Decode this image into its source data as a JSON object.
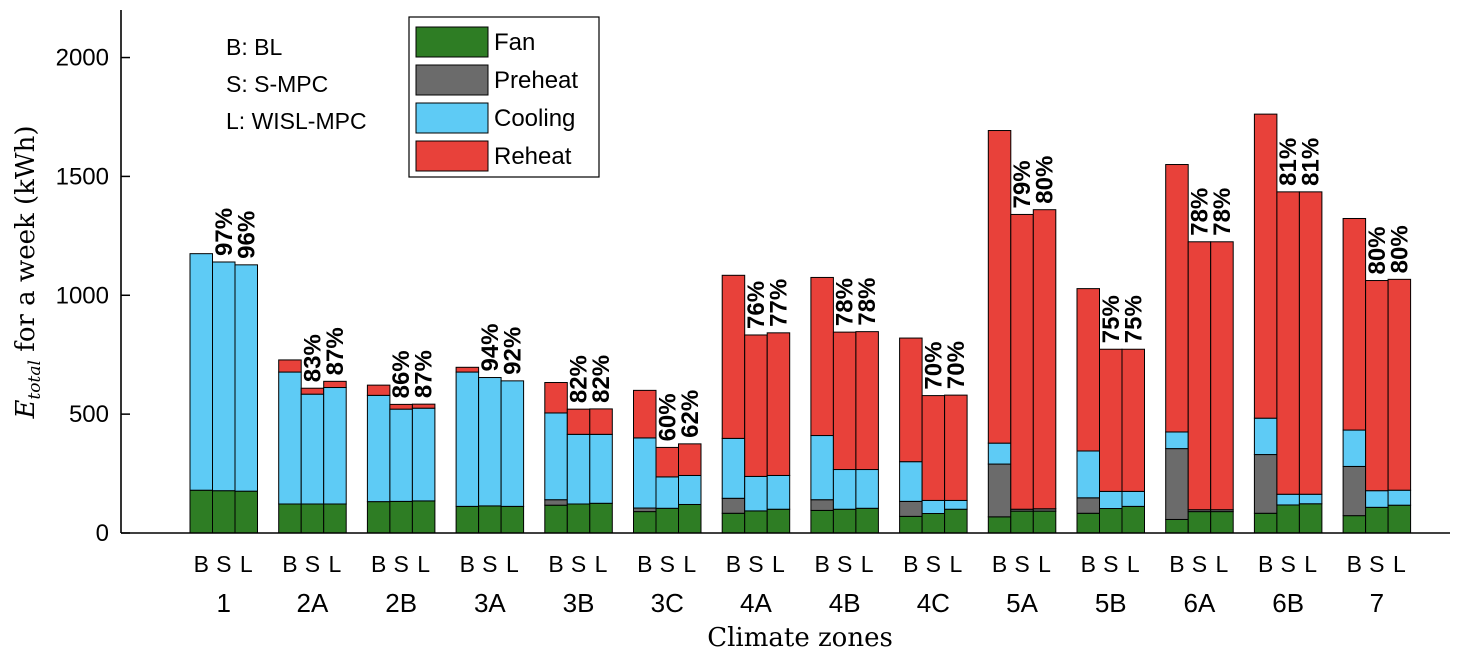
{
  "chart_data": {
    "type": "bar",
    "stacked": true,
    "xlabel": "Climate zones",
    "ylabel": {
      "main": "E",
      "sub": "total",
      "rest": " for a week (kWh)"
    },
    "ylim": [
      0,
      2200
    ],
    "yticks": [
      0,
      500,
      1000,
      1500,
      2000
    ],
    "grid": false,
    "legend_position": "top-left",
    "bar_letters": [
      "B",
      "S",
      "L"
    ],
    "abbreviations": [
      "B: BL",
      "S: S-MPC",
      "L: WISL-MPC"
    ],
    "series": [
      {
        "name": "Fan",
        "color": "#2e7d24"
      },
      {
        "name": "Preheat",
        "color": "#6b6b6b"
      },
      {
        "name": "Cooling",
        "color": "#5ecbf5"
      },
      {
        "name": "Reheat",
        "color": "#e8413a"
      }
    ],
    "groups": [
      {
        "label": "1",
        "bars": [
          {
            "Fan": 180,
            "Preheat": 0,
            "Cooling": 995,
            "Reheat": 0
          },
          {
            "Fan": 178,
            "Preheat": 0,
            "Cooling": 962,
            "Reheat": 0
          },
          {
            "Fan": 176,
            "Preheat": 0,
            "Cooling": 952,
            "Reheat": 0
          }
        ],
        "pcts": [
          "97%",
          "96%"
        ]
      },
      {
        "label": "2A",
        "bars": [
          {
            "Fan": 122,
            "Preheat": 0,
            "Cooling": 555,
            "Reheat": 51
          },
          {
            "Fan": 122,
            "Preheat": 0,
            "Cooling": 462,
            "Reheat": 25
          },
          {
            "Fan": 122,
            "Preheat": 0,
            "Cooling": 490,
            "Reheat": 26
          }
        ],
        "pcts": [
          "83%",
          "87%"
        ]
      },
      {
        "label": "2B",
        "bars": [
          {
            "Fan": 132,
            "Preheat": 0,
            "Cooling": 447,
            "Reheat": 43
          },
          {
            "Fan": 133,
            "Preheat": 0,
            "Cooling": 388,
            "Reheat": 20
          },
          {
            "Fan": 135,
            "Preheat": 0,
            "Cooling": 390,
            "Reheat": 17
          }
        ],
        "pcts": [
          "86%",
          "87%"
        ]
      },
      {
        "label": "3A",
        "bars": [
          {
            "Fan": 112,
            "Preheat": 0,
            "Cooling": 565,
            "Reheat": 20
          },
          {
            "Fan": 114,
            "Preheat": 0,
            "Cooling": 540,
            "Reheat": 0
          },
          {
            "Fan": 112,
            "Preheat": 0,
            "Cooling": 528,
            "Reheat": 0
          }
        ],
        "pcts": [
          "94%",
          "92%"
        ]
      },
      {
        "label": "3B",
        "bars": [
          {
            "Fan": 117,
            "Preheat": 23,
            "Cooling": 365,
            "Reheat": 128
          },
          {
            "Fan": 122,
            "Preheat": 0,
            "Cooling": 293,
            "Reheat": 106
          },
          {
            "Fan": 125,
            "Preheat": 0,
            "Cooling": 290,
            "Reheat": 107
          }
        ],
        "pcts": [
          "82%",
          "82%"
        ]
      },
      {
        "label": "3C",
        "bars": [
          {
            "Fan": 90,
            "Preheat": 15,
            "Cooling": 295,
            "Reheat": 200
          },
          {
            "Fan": 104,
            "Preheat": 0,
            "Cooling": 132,
            "Reheat": 124
          },
          {
            "Fan": 120,
            "Preheat": 0,
            "Cooling": 122,
            "Reheat": 133
          }
        ],
        "pcts": [
          "60%",
          "62%"
        ]
      },
      {
        "label": "4A",
        "bars": [
          {
            "Fan": 83,
            "Preheat": 63,
            "Cooling": 252,
            "Reheat": 686
          },
          {
            "Fan": 93,
            "Preheat": 0,
            "Cooling": 145,
            "Reheat": 595
          },
          {
            "Fan": 100,
            "Preheat": 0,
            "Cooling": 142,
            "Reheat": 600
          }
        ],
        "pcts": [
          "76%",
          "77%"
        ]
      },
      {
        "label": "4B",
        "bars": [
          {
            "Fan": 95,
            "Preheat": 45,
            "Cooling": 270,
            "Reheat": 665
          },
          {
            "Fan": 100,
            "Preheat": 0,
            "Cooling": 167,
            "Reheat": 578
          },
          {
            "Fan": 104,
            "Preheat": 0,
            "Cooling": 163,
            "Reheat": 580
          }
        ],
        "pcts": [
          "78%",
          "78%"
        ]
      },
      {
        "label": "4C",
        "bars": [
          {
            "Fan": 70,
            "Preheat": 63,
            "Cooling": 167,
            "Reheat": 520
          },
          {
            "Fan": 82,
            "Preheat": 0,
            "Cooling": 55,
            "Reheat": 441
          },
          {
            "Fan": 100,
            "Preheat": 0,
            "Cooling": 37,
            "Reheat": 443
          }
        ],
        "pcts": [
          "70%",
          "70%"
        ]
      },
      {
        "label": "5A",
        "bars": [
          {
            "Fan": 68,
            "Preheat": 222,
            "Cooling": 88,
            "Reheat": 1315
          },
          {
            "Fan": 92,
            "Preheat": 8,
            "Cooling": 0,
            "Reheat": 1240
          },
          {
            "Fan": 92,
            "Preheat": 10,
            "Cooling": 0,
            "Reheat": 1258
          }
        ],
        "pcts": [
          "79%",
          "80%"
        ]
      },
      {
        "label": "5B",
        "bars": [
          {
            "Fan": 83,
            "Preheat": 65,
            "Cooling": 197,
            "Reheat": 683
          },
          {
            "Fan": 103,
            "Preheat": 0,
            "Cooling": 72,
            "Reheat": 598
          },
          {
            "Fan": 112,
            "Preheat": 0,
            "Cooling": 63,
            "Reheat": 598
          }
        ],
        "pcts": [
          "75%",
          "75%"
        ]
      },
      {
        "label": "6A",
        "bars": [
          {
            "Fan": 57,
            "Preheat": 298,
            "Cooling": 70,
            "Reheat": 1125
          },
          {
            "Fan": 90,
            "Preheat": 8,
            "Cooling": 0,
            "Reheat": 1127
          },
          {
            "Fan": 90,
            "Preheat": 8,
            "Cooling": 0,
            "Reheat": 1127
          }
        ],
        "pcts": [
          "78%",
          "78%"
        ]
      },
      {
        "label": "6B",
        "bars": [
          {
            "Fan": 83,
            "Preheat": 247,
            "Cooling": 153,
            "Reheat": 1279
          },
          {
            "Fan": 118,
            "Preheat": 0,
            "Cooling": 45,
            "Reheat": 1272
          },
          {
            "Fan": 123,
            "Preheat": 0,
            "Cooling": 40,
            "Reheat": 1272
          }
        ],
        "pcts": [
          "81%",
          "81%"
        ]
      },
      {
        "label": "7",
        "bars": [
          {
            "Fan": 73,
            "Preheat": 207,
            "Cooling": 153,
            "Reheat": 890
          },
          {
            "Fan": 108,
            "Preheat": 0,
            "Cooling": 70,
            "Reheat": 884
          },
          {
            "Fan": 117,
            "Preheat": 0,
            "Cooling": 63,
            "Reheat": 887
          }
        ],
        "pcts": [
          "80%",
          "80%"
        ]
      }
    ]
  }
}
